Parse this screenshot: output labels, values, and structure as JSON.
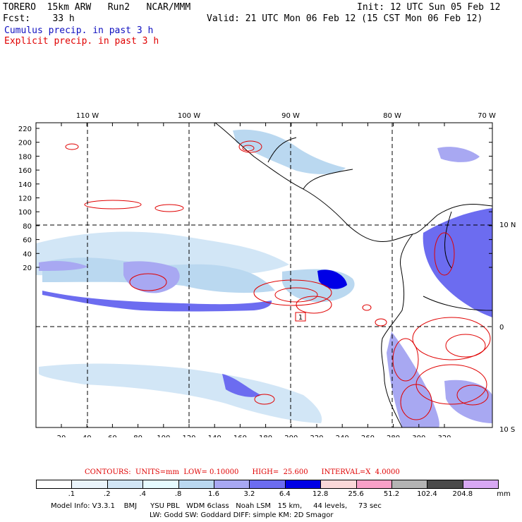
{
  "header": {
    "model": "TORERO",
    "resolution": "15km ARW",
    "run": "Run2",
    "org": "NCAR/MMM",
    "init": "Init: 12 UTC Sun 05 Feb 12",
    "fcst_label": "Fcst:",
    "fcst_value": "33 h",
    "valid": "Valid: 21 UTC Mon 06 Feb 12 (15 CST Mon 06 Feb 12)",
    "line_cumulus": "Cumulus precip. in past 3 h",
    "line_explicit": "Explicit precip. in past 3 h"
  },
  "map": {
    "top_lon_labels": [
      "110 W",
      "100 W",
      "90 W",
      "80 W",
      "70 W"
    ],
    "right_lat_labels": [
      "10 N",
      "0",
      "10 S"
    ],
    "left_y_labels": [
      "220",
      "200",
      "180",
      "160",
      "140",
      "120",
      "100",
      "80",
      "60",
      "40",
      "20"
    ],
    "bottom_x_labels": [
      "20",
      "40",
      "60",
      "80",
      "100",
      "120",
      "140",
      "160",
      "180",
      "200",
      "220",
      "240",
      "260",
      "280",
      "300",
      "320"
    ],
    "box_label": "1"
  },
  "contours_line": "CONTOURS:  UNITS=mm  LOW= 0.10000      HIGH=  25.600      INTERVAL=X  4.0000",
  "legend": {
    "colors": [
      "#ffffff",
      "#eaf4fb",
      "#d2e6f6",
      "#e6fbff",
      "#bad8f0",
      "#a8a8f2",
      "#6c6cf0",
      "#0000e6",
      "#fad8d8",
      "#f8a0c8",
      "#b4b4b4",
      "#4a4a4a",
      "#d8a8f4"
    ],
    "labels": [
      ".1",
      ".2",
      ".4",
      ".8",
      "1.6",
      "3.2",
      "6.4",
      "12.8",
      "25.6",
      "51.2",
      "102.4",
      "204.8"
    ],
    "unit": "mm"
  },
  "footer": {
    "line1": "Model Info: V3.3.1    BMJ      YSU PBL   WDM 6class   Noah LSM   15 km,     44 levels,     73 sec",
    "line2": "LW: Godd SW: Goddard DIFF: simple KM: 2D Smagor"
  }
}
